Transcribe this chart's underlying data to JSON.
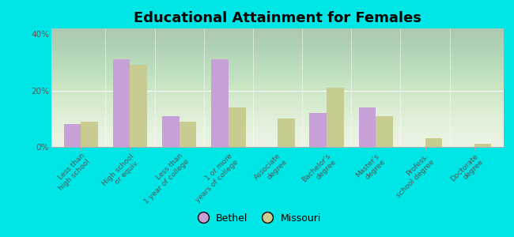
{
  "title": "Educational Attainment for Females",
  "categories": [
    "Less than\nhigh school",
    "High school\nor equiv.",
    "Less than\n1 year of college",
    "1 or more\nyears of college",
    "Associate\ndegree",
    "Bachelor's\ndegree",
    "Master's\ndegree",
    "Profess.\nschool degree",
    "Doctorate\ndegree"
  ],
  "bethel": [
    8,
    31,
    11,
    31,
    0,
    12,
    14,
    0,
    0
  ],
  "missouri": [
    9,
    29,
    9,
    14,
    10,
    21,
    11,
    3,
    1
  ],
  "bethel_color": "#c8a0d8",
  "missouri_color": "#c8cc90",
  "background_outer": "#00e5e5",
  "background_plot_top": "#d8e8d0",
  "background_plot_bottom": "#f0f5e8",
  "ylim": [
    0,
    42
  ],
  "yticks": [
    0,
    20,
    40
  ],
  "ytick_labels": [
    "0%",
    "20%",
    "40%"
  ],
  "bar_width": 0.35,
  "legend_labels": [
    "Bethel",
    "Missouri"
  ],
  "title_fontsize": 13,
  "tick_fontsize": 6.5,
  "legend_fontsize": 9
}
